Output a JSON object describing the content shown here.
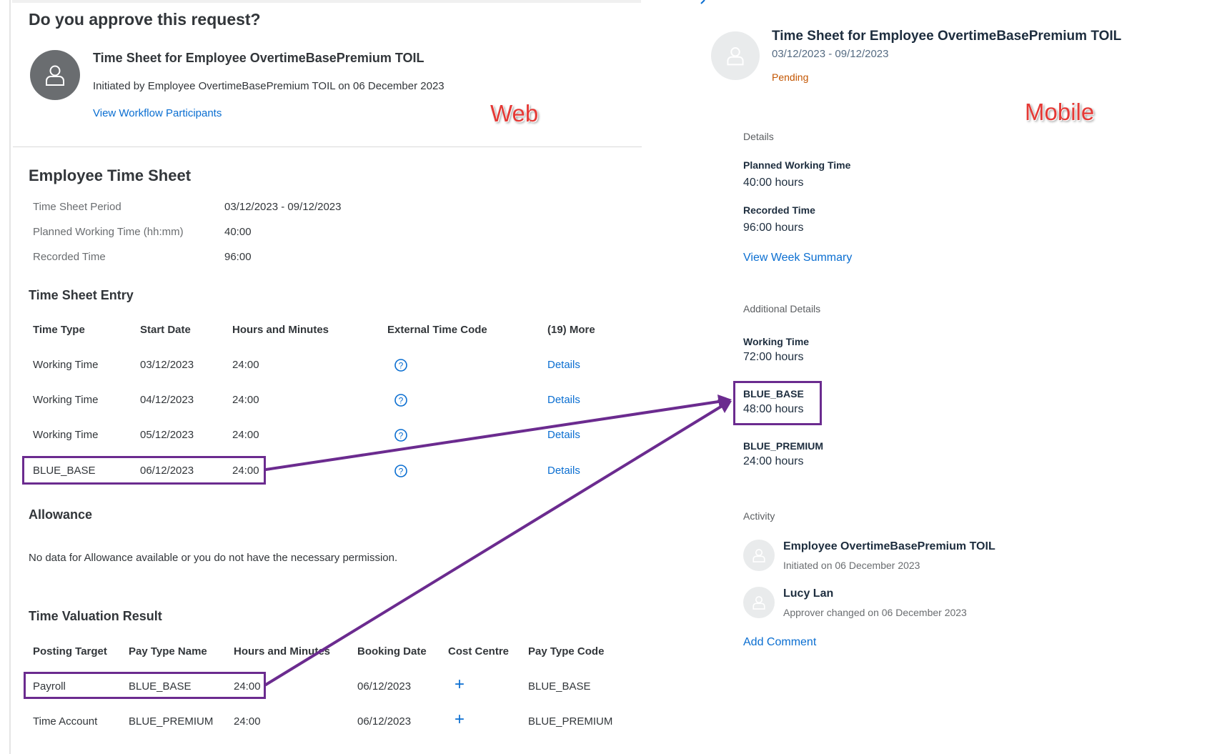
{
  "web": {
    "label": "Web",
    "question": "Do you approve this request?",
    "request_title": "Time Sheet for Employee OvertimeBasePremium TOIL",
    "initiated": "Initiated by Employee OvertimeBasePremium TOIL on 06 December 2023",
    "view_participants": "View Workflow Participants",
    "timesheet": {
      "heading": "Employee Time Sheet",
      "rows": [
        {
          "label": "Time Sheet Period",
          "value": "03/12/2023 - 09/12/2023"
        },
        {
          "label": "Planned Working Time (hh:mm)",
          "value": "40:00"
        },
        {
          "label": "Recorded Time",
          "value": "96:00"
        }
      ]
    },
    "entry": {
      "heading": "Time Sheet Entry",
      "columns": [
        "Time Type",
        "Start Date",
        "Hours and Minutes",
        "External Time Code",
        "(19) More"
      ],
      "rows": [
        {
          "type": "Working Time",
          "date": "03/12/2023",
          "hours": "24:00",
          "more": "Details"
        },
        {
          "type": "Working Time",
          "date": "04/12/2023",
          "hours": "24:00",
          "more": "Details"
        },
        {
          "type": "Working Time",
          "date": "05/12/2023",
          "hours": "24:00",
          "more": "Details"
        },
        {
          "type": "BLUE_BASE",
          "date": "06/12/2023",
          "hours": "24:00",
          "more": "Details"
        }
      ]
    },
    "allowance": {
      "heading": "Allowance",
      "message": "No data for Allowance available or you do not have the necessary permission."
    },
    "valuation": {
      "heading": "Time Valuation Result",
      "columns": [
        "Posting Target",
        "Pay Type Name",
        "Hours and Minutes",
        "Booking Date",
        "Cost Centre",
        "Pay Type Code"
      ],
      "rows": [
        {
          "target": "Payroll",
          "name": "BLUE_BASE",
          "hours": "24:00",
          "date": "06/12/2023",
          "code": "BLUE_BASE"
        },
        {
          "target": "Time Account",
          "name": "BLUE_PREMIUM",
          "hours": "24:00",
          "date": "06/12/2023",
          "code": "BLUE_PREMIUM"
        }
      ]
    }
  },
  "mobile": {
    "label": "Mobile",
    "title": "Time Sheet for Employee OvertimeBasePremium TOIL",
    "period": "03/12/2023 - 09/12/2023",
    "status": "Pending",
    "details_heading": "Details",
    "planned_label": "Planned Working Time",
    "planned_value": "40:00 hours",
    "recorded_label": "Recorded Time",
    "recorded_value": "96:00 hours",
    "week_summary": "View Week Summary",
    "additional_heading": "Additional Details",
    "additional": [
      {
        "label": "Working Time",
        "value": "72:00 hours"
      },
      {
        "label": "BLUE_BASE",
        "value": "48:00 hours"
      },
      {
        "label": "BLUE_PREMIUM",
        "value": "24:00 hours"
      }
    ],
    "activity_heading": "Activity",
    "activity": [
      {
        "name": "Employee OvertimeBasePremium TOIL",
        "note": "Initiated on 06 December 2023"
      },
      {
        "name": "Lucy Lan",
        "note": "Approver changed on 06 December 2023"
      }
    ],
    "add_comment": "Add Comment"
  },
  "colors": {
    "link": "#0a6ed1",
    "pending": "#c35500",
    "highlight": "#6b2b8f",
    "annotation": "#e53935"
  }
}
